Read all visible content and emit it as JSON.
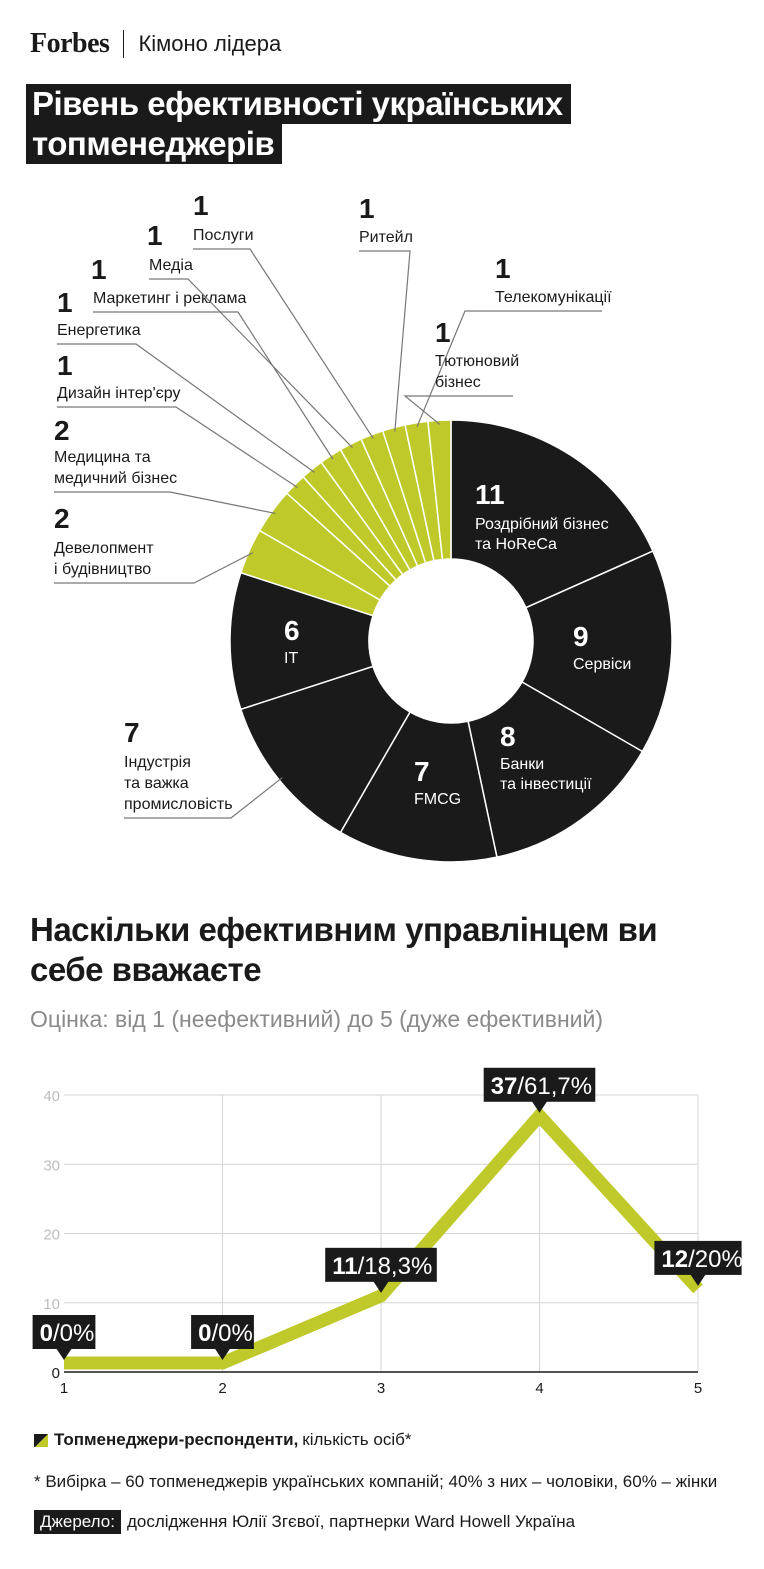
{
  "header": {
    "brand": "Forbes",
    "section": "Кімоно лідера"
  },
  "title": {
    "line1": "Рівень ефективності українських",
    "line2": "топменеджерів"
  },
  "colors": {
    "dark": "#1a1a1a",
    "accent": "#bfc92a",
    "grid": "#d6d6d6",
    "muted": "#8a8a8a"
  },
  "chart_data": [
    {
      "type": "pie",
      "slices": [
        {
          "value": 11,
          "label": "Роздрібний бізнес та HoReCa",
          "color": "dark"
        },
        {
          "value": 9,
          "label": "Сервіси",
          "color": "dark"
        },
        {
          "value": 8,
          "label": "Банки та інвестиції",
          "color": "dark"
        },
        {
          "value": 7,
          "label": "FMCG",
          "color": "dark"
        },
        {
          "value": 7,
          "label": "Індустрія та важка промисловість",
          "color": "dark"
        },
        {
          "value": 6,
          "label": "IT",
          "color": "dark"
        },
        {
          "value": 2,
          "label": "Девелопмент і будівництво",
          "color": "accent"
        },
        {
          "value": 2,
          "label": "Медицина та медичний бізнес",
          "color": "accent"
        },
        {
          "value": 1,
          "label": "Дизайн інтер'єру",
          "color": "accent"
        },
        {
          "value": 1,
          "label": "Енергетика",
          "color": "accent"
        },
        {
          "value": 1,
          "label": "Маркетинг і реклама",
          "color": "accent"
        },
        {
          "value": 1,
          "label": "Медіа",
          "color": "accent"
        },
        {
          "value": 1,
          "label": "Послуги",
          "color": "accent"
        },
        {
          "value": 1,
          "label": "Ритейл",
          "color": "accent"
        },
        {
          "value": 1,
          "label": "Телекомунікації",
          "color": "accent"
        },
        {
          "value": 1,
          "label": "Тютюновий бізнес",
          "color": "accent"
        }
      ]
    },
    {
      "type": "line",
      "title": "Наскільки ефективним управлінцем ви себе вважаєте",
      "subtitle": "Оцінка: від 1 (неефективний) до 5 (дуже ефективний)",
      "x": [
        1,
        2,
        3,
        4,
        5
      ],
      "x_ticks": [
        "1",
        "2",
        "3",
        "4",
        "5"
      ],
      "y_ticks": [
        "0",
        "10",
        "20",
        "30",
        "40"
      ],
      "ylim": [
        0,
        40
      ],
      "grid": true,
      "series": [
        {
          "name": "Топменеджери-респонденти",
          "values": [
            0,
            0,
            11,
            37,
            12
          ]
        }
      ],
      "data_labels": [
        {
          "count": "0",
          "pct": "/0%"
        },
        {
          "count": "0",
          "pct": "/0%"
        },
        {
          "count": "11",
          "pct": "/18,3%"
        },
        {
          "count": "37",
          "pct": "/61,7%"
        },
        {
          "count": "12",
          "pct": "/20%"
        }
      ]
    }
  ],
  "legend": {
    "bold": "Топменеджери-респонденти,",
    "rest": "кількість осіб*"
  },
  "footnote": "* Вибірка – 60 топменеджерів українських компаній; 40% з них – чоловіки, 60% – жінки",
  "source": {
    "label": "Джерело:",
    "text": "дослідження Юлії Згєвої, партнерки Ward Howell Україна"
  }
}
